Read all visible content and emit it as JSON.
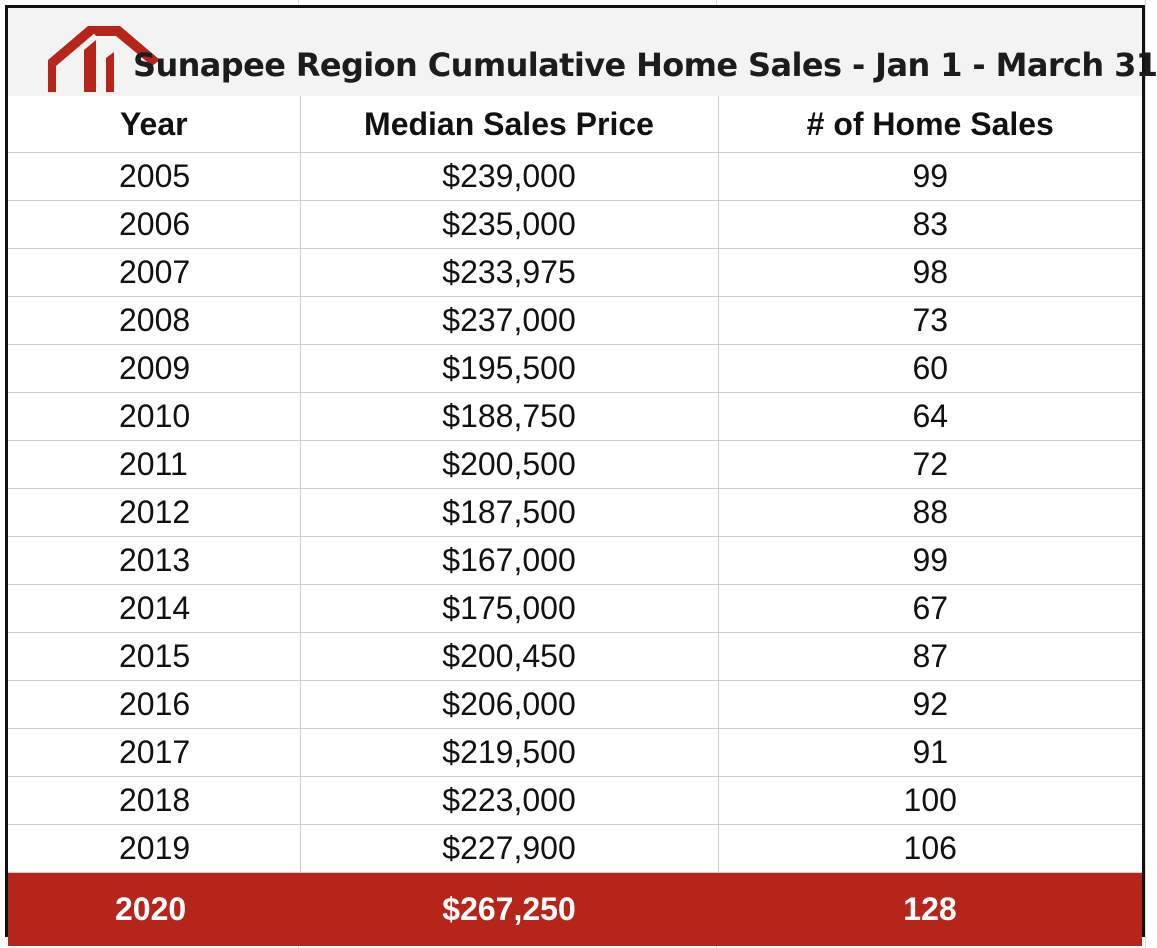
{
  "title": "Sunapee Region Cumulative Home Sales - Jan 1 - March 31",
  "logo": {
    "icon": "house-roof-logo",
    "color": "#b52519"
  },
  "colors": {
    "highlight_row": "#b52519",
    "highlight_text": "#ffffff",
    "title_bar": "#f3f3f3"
  },
  "columns": {
    "year": "Year",
    "price": "Median Sales Price",
    "sales": "# of Home Sales"
  },
  "rows": [
    {
      "year": "2005",
      "price": "$239,000",
      "sales": "99"
    },
    {
      "year": "2006",
      "price": "$235,000",
      "sales": "83"
    },
    {
      "year": "2007",
      "price": "$233,975",
      "sales": "98"
    },
    {
      "year": "2008",
      "price": "$237,000",
      "sales": "73"
    },
    {
      "year": "2009",
      "price": "$195,500",
      "sales": "60"
    },
    {
      "year": "2010",
      "price": "$188,750",
      "sales": "64"
    },
    {
      "year": "2011",
      "price": "$200,500",
      "sales": "72"
    },
    {
      "year": "2012",
      "price": "$187,500",
      "sales": "88"
    },
    {
      "year": "2013",
      "price": "$167,000",
      "sales": "99"
    },
    {
      "year": "2014",
      "price": "$175,000",
      "sales": "67"
    },
    {
      "year": "2015",
      "price": "$200,450",
      "sales": "87"
    },
    {
      "year": "2016",
      "price": "$206,000",
      "sales": "92"
    },
    {
      "year": "2017",
      "price": "$219,500",
      "sales": "91"
    },
    {
      "year": "2018",
      "price": "$223,000",
      "sales": "100"
    },
    {
      "year": "2019",
      "price": "$227,900",
      "sales": "106"
    }
  ],
  "highlight_row": {
    "year": "2020",
    "price": "$267,250",
    "sales": "128"
  }
}
